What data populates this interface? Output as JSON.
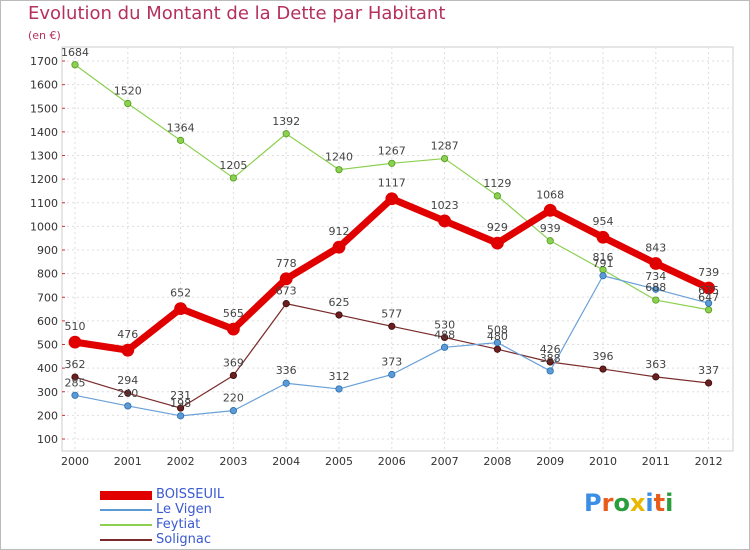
{
  "title": "Evolution du Montant de la Dette par Habitant",
  "unit": "(en €)",
  "chart_data": {
    "type": "line",
    "title": "Evolution du Montant de la Dette par Habitant",
    "ylabel": "(en €)",
    "xlabel": "",
    "x": [
      "2000",
      "2001",
      "2002",
      "2003",
      "2004",
      "2005",
      "2006",
      "2007",
      "2008",
      "2009",
      "2010",
      "2011",
      "2012"
    ],
    "ylim": [
      100,
      1700
    ],
    "yticks": [
      100,
      200,
      300,
      400,
      500,
      600,
      700,
      800,
      900,
      1000,
      1100,
      1200,
      1300,
      1400,
      1500,
      1600,
      1700
    ],
    "grid": true,
    "legend_position": "bottom-left",
    "series": [
      {
        "name": "BOISSEUIL",
        "color": "#e00000",
        "values": [
          510,
          476,
          652,
          565,
          778,
          912,
          1117,
          1023,
          929,
          1068,
          954,
          843,
          739
        ]
      },
      {
        "name": "Le Vigen",
        "color": "#5b9bd5",
        "values": [
          285,
          240,
          198,
          220,
          336,
          312,
          373,
          488,
          508,
          388,
          791,
          734,
          675
        ]
      },
      {
        "name": "Feytiat",
        "color": "#8cd050",
        "values": [
          1684,
          1520,
          1364,
          1205,
          1392,
          1240,
          1267,
          1287,
          1129,
          939,
          816,
          688,
          647
        ]
      },
      {
        "name": "Solignac",
        "color": "#7a2a2a",
        "values": [
          362,
          294,
          231,
          369,
          673,
          625,
          577,
          530,
          480,
          426,
          396,
          363,
          337
        ]
      }
    ],
    "data_labels": {
      "BOISSEUIL": [
        "510",
        "476",
        "652",
        "565",
        "778",
        "912",
        "1117",
        "1023",
        "929",
        "1068",
        "954",
        "843",
        "739"
      ],
      "Le Vigen": [
        "285",
        "240",
        "198",
        "220",
        "336",
        "312",
        "373",
        "488",
        "508",
        "388",
        "791",
        "734",
        "675"
      ],
      "Feytiat": [
        "1684",
        "1520",
        "1364",
        "1205",
        "1392",
        "1240",
        "1267",
        "1287",
        "1129",
        "939",
        "816",
        "688",
        "647"
      ],
      "Solignac": [
        "362",
        "294",
        "231",
        "369",
        "673",
        "625",
        "577",
        "530",
        "480",
        "426",
        "396",
        "363",
        "337"
      ]
    }
  },
  "legend": [
    {
      "label": "BOISSEUIL",
      "color": "#e00000"
    },
    {
      "label": "Le Vigen",
      "color": "#5b9bd5"
    },
    {
      "label": "Feytiat",
      "color": "#8cd050"
    },
    {
      "label": "Solignac",
      "color": "#7a2a2a"
    }
  ],
  "logo": {
    "text": "Proxiti",
    "letter_colors": [
      "#3a8ee6",
      "#e85c1c",
      "#2a9e3c",
      "#e8b800",
      "#3a8ee6",
      "#e85c1c",
      "#2a9e3c"
    ]
  }
}
